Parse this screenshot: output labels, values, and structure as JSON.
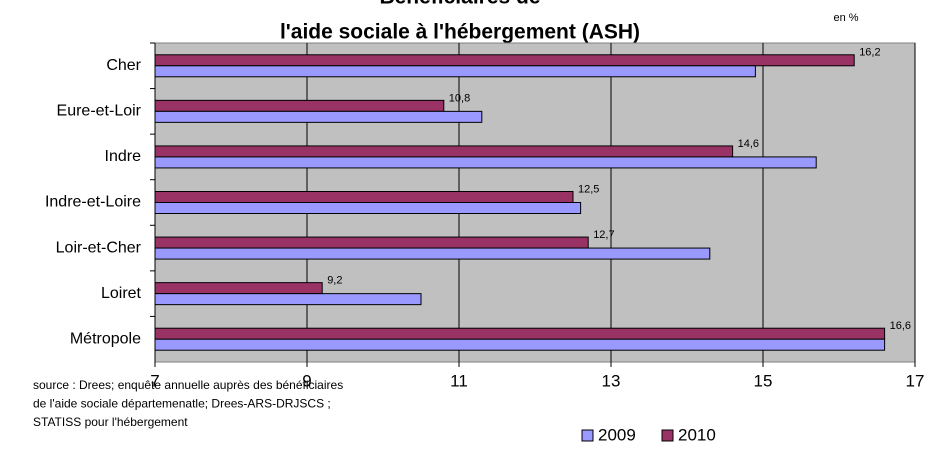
{
  "chart_data": {
    "type": "bar",
    "orientation": "horizontal",
    "title": [
      "Bénéficiaires de",
      "l'aide sociale à l'hébergement (ASH)"
    ],
    "unit_note": "en %",
    "categories": [
      "Cher",
      "Eure-et-Loir",
      "Indre",
      "Indre-et-Loire",
      "Loir-et-Cher",
      "Loiret",
      "Métropole"
    ],
    "series": [
      {
        "name": "2009",
        "color": "#9999ff",
        "values": [
          14.9,
          11.3,
          15.7,
          12.6,
          14.3,
          10.5,
          16.6
        ]
      },
      {
        "name": "2010",
        "color": "#993366",
        "values": [
          16.2,
          10.8,
          14.6,
          12.5,
          12.7,
          9.2,
          16.6
        ],
        "value_labels": [
          "16,2",
          "10,8",
          "14,6",
          "12,5",
          "12,7",
          "9,2",
          "16,6"
        ]
      }
    ],
    "xlim": [
      7,
      17
    ],
    "xticks": [
      7,
      9,
      11,
      13,
      15,
      17
    ],
    "grid": true,
    "source": [
      "source : Drees; enquête annuelle auprès des bénéficiaires",
      "de l'aide sociale départemenatle; Drees-ARS-DRJSCS ;",
      "STATISS pour l'hébergement"
    ],
    "legend": "bottom"
  }
}
